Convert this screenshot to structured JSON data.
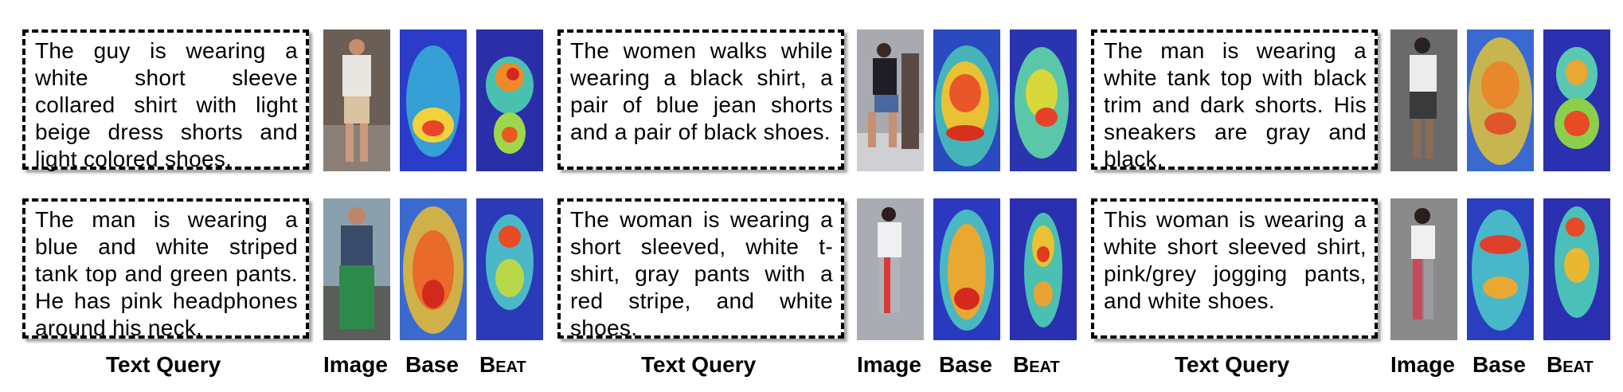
{
  "groups": [
    {
      "queries": [
        "The guy is wearing a white short sleeve collared shirt with light beige dress shorts and light colored shoes.",
        "The man is wearing a blue and white striped tank top and green pants. He has pink headphones around his neck."
      ]
    },
    {
      "queries": [
        "The women walks while wearing a black shirt, a pair of blue jean shorts and a pair of black shoes.",
        "The woman is wearing a short sleeved, white t-shirt, gray pants with a red stripe, and white shoes."
      ]
    },
    {
      "queries": [
        "The man is wearing a white tank top with black trim and dark shorts. His sneakers are gray and black.",
        "This woman is wearing a white short sleeved shirt, pink/grey jogging pants, and white shoes."
      ]
    }
  ],
  "labels": {
    "text_query": "Text Query",
    "image": "Image",
    "base": "Base",
    "beat": "Beat"
  }
}
